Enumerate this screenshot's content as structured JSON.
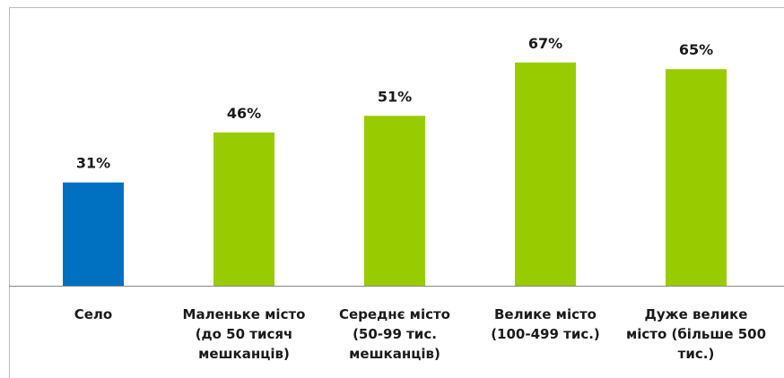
{
  "chart_data": {
    "type": "bar",
    "categories": [
      "Село",
      "Маленьке місто (до 50 тисяч мешканців)",
      "Середнє місто (50-99 тис. мешканців)",
      "Велике місто (100-499 тис.)",
      "Дуже велике місто (більше 500 тис.)"
    ],
    "values": [
      31,
      46,
      51,
      67,
      65
    ],
    "value_labels": [
      "31%",
      "46%",
      "51%",
      "67%",
      "65%"
    ],
    "colors": [
      "#0070c0",
      "#99cc00",
      "#99cc00",
      "#99cc00",
      "#99cc00"
    ]
  }
}
